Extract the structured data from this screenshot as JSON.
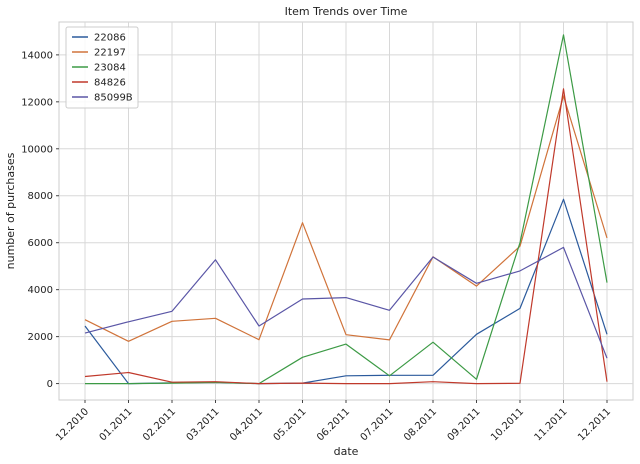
{
  "chart_data": {
    "type": "line",
    "title": "Item Trends over Time",
    "xlabel": "date",
    "ylabel": "number of purchases",
    "categories": [
      "12.2010",
      "01.2011",
      "02.2011",
      "03.2011",
      "04.2011",
      "05.2011",
      "06.2011",
      "07.2011",
      "08.2011",
      "09.2011",
      "10.2011",
      "11.2011",
      "12.2011"
    ],
    "yticks": [
      0,
      2000,
      4000,
      6000,
      8000,
      10000,
      12000,
      14000
    ],
    "ylim": [
      -700,
      15400
    ],
    "grid": true,
    "legend_position": "top-left",
    "series": [
      {
        "name": "22086",
        "color": "#2b5a9c",
        "values": [
          2450,
          0,
          30,
          50,
          0,
          20,
          330,
          350,
          350,
          2100,
          3200,
          7850,
          2100
        ]
      },
      {
        "name": "22197",
        "color": "#d0733a",
        "values": [
          2720,
          1800,
          2650,
          2780,
          1870,
          6850,
          2080,
          1860,
          5400,
          4150,
          5850,
          12250,
          6200
        ]
      },
      {
        "name": "23084",
        "color": "#3c9a45",
        "values": [
          0,
          0,
          20,
          50,
          0,
          1120,
          1680,
          330,
          1760,
          180,
          6000,
          14850,
          4300
        ]
      },
      {
        "name": "84826",
        "color": "#c0392b",
        "values": [
          300,
          470,
          60,
          80,
          0,
          20,
          0,
          0,
          80,
          0,
          10,
          12550,
          80
        ]
      },
      {
        "name": "85099B",
        "color": "#5a56a6",
        "values": [
          2150,
          2630,
          3080,
          5270,
          2450,
          3600,
          3660,
          3120,
          5390,
          4270,
          4800,
          5800,
          1080
        ]
      }
    ]
  }
}
